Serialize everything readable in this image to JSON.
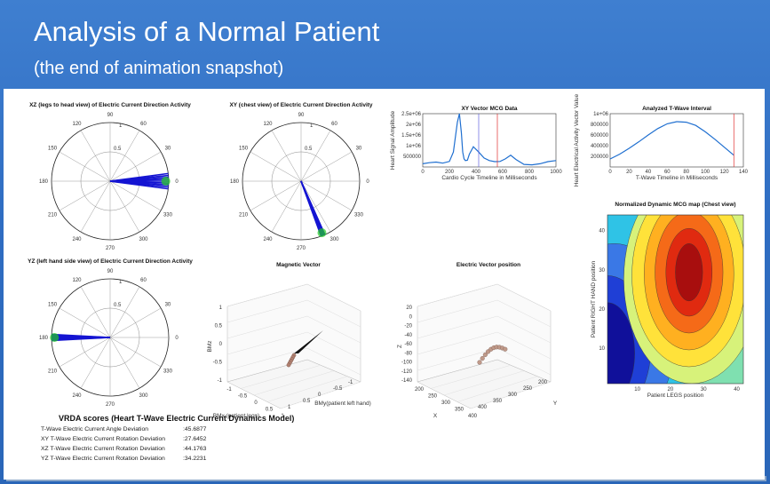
{
  "slide": {
    "title": "Analysis of a Normal Patient",
    "subtitle": "(the end of animation snapshot)"
  },
  "colors": {
    "background": "#2f6dc2",
    "polar_blue": "#1414d2",
    "polar_green": "#22cc22",
    "curve": "#1f6fd0",
    "marker_red": "#e03030",
    "marker_blue": "#6060e0"
  },
  "polar_charts": [
    {
      "title": "XZ (legs to head view) of Electric Current Direction Activity",
      "angle_labels": [
        "90",
        "60",
        "30",
        "0",
        "330",
        "300",
        "270",
        "240",
        "210",
        "180",
        "150",
        "120"
      ],
      "radius_labels": [
        "0.5",
        "1"
      ],
      "direction_deg": 0,
      "spread_deg": 15
    },
    {
      "title": "XY (chest view) of Electric Current Direction Activity",
      "angle_labels": [
        "90",
        "60",
        "30",
        "0",
        "330",
        "300",
        "270",
        "240",
        "210",
        "180",
        "150",
        "120"
      ],
      "radius_labels": [
        "0.5",
        "1"
      ],
      "direction_deg": 292,
      "spread_deg": 4
    },
    {
      "title": "YZ (left hand side view) of Electric Current Direction Activity",
      "angle_labels": [
        "90",
        "60",
        "30",
        "0",
        "330",
        "300",
        "270",
        "240",
        "210",
        "180",
        "150",
        "120"
      ],
      "radius_labels": [
        "0.5",
        "1"
      ],
      "direction_deg": 180,
      "spread_deg": 6
    }
  ],
  "chart_data": [
    {
      "type": "line",
      "title": "XY Vector MCG Data",
      "xlabel": "Cardio Cycle Timeline in Milliseconds",
      "ylabel": "Heart Signal Amplitude",
      "xlim": [
        0,
        1000
      ],
      "ylim": [
        0,
        2500000
      ],
      "xticks": [
        "0",
        "200",
        "400",
        "600",
        "800",
        "1000"
      ],
      "yticks": [
        "500000",
        "1e+06",
        "1.5e+06",
        "2e+06",
        "2.5e+06"
      ],
      "x": [
        0,
        50,
        100,
        150,
        200,
        230,
        260,
        275,
        290,
        300,
        310,
        320,
        335,
        350,
        380,
        420,
        460,
        500,
        540,
        580,
        620,
        660,
        700,
        760,
        820,
        880,
        940,
        1000
      ],
      "y": [
        150000,
        200000,
        230000,
        180000,
        260000,
        700000,
        2100000,
        2500000,
        1600000,
        700000,
        380000,
        300000,
        320000,
        600000,
        950000,
        700000,
        420000,
        300000,
        250000,
        260000,
        380000,
        550000,
        350000,
        120000,
        100000,
        150000,
        250000,
        300000
      ],
      "markers": [
        {
          "x": 420,
          "color": "#6060e0"
        },
        {
          "x": 560,
          "color": "#e03030"
        }
      ]
    },
    {
      "type": "line",
      "title": "Analyzed T-Wave Interval",
      "xlabel": "T-Wave Timeline in Milliseconds",
      "ylabel": "Heart Electrical Activity Vector Value",
      "xlim": [
        0,
        140
      ],
      "ylim": [
        0,
        1000000
      ],
      "xticks": [
        "0",
        "20",
        "40",
        "60",
        "80",
        "100",
        "120",
        "140"
      ],
      "yticks": [
        "200000",
        "400000",
        "600000",
        "800000",
        "1e+06"
      ],
      "x": [
        0,
        10,
        20,
        30,
        40,
        50,
        60,
        70,
        80,
        90,
        100,
        110,
        120,
        130
      ],
      "y": [
        150000,
        240000,
        350000,
        470000,
        600000,
        720000,
        810000,
        850000,
        840000,
        780000,
        660000,
        520000,
        370000,
        220000
      ],
      "markers": [
        {
          "x": 130,
          "color": "#e03030"
        }
      ]
    },
    {
      "type": "heatmap",
      "title": "Normalized Dynamic MCG map (Chest view)",
      "xlabel": "Patient LEGS position",
      "ylabel": "Patient RIGHT HAND position",
      "xlim": [
        1,
        42
      ],
      "ylim": [
        1,
        44
      ],
      "xticks": [
        "10",
        "20",
        "30",
        "40"
      ],
      "yticks": [
        "10",
        "20",
        "30",
        "40"
      ]
    }
  ],
  "panels_3d": [
    {
      "title": "Magnetic Vector",
      "zlabel": "BMz",
      "xlabel": "BMx (patient legs)",
      "ylabel": "BMy(patient left hand)",
      "zticks": [
        "1",
        "0.5",
        "0",
        "-0.5",
        "-1"
      ],
      "xticks": [
        "-1",
        "-0.5",
        "0",
        "0.5",
        "1"
      ],
      "yticks": [
        "1",
        "0.5",
        "0",
        "-0.5",
        "-1"
      ]
    },
    {
      "title": "Electric Vector position",
      "zlabel": "Z",
      "xlabel": "X",
      "ylabel": "Y",
      "zticks": [
        "20",
        "0",
        "-20",
        "-40",
        "-60",
        "-80",
        "-100",
        "-120",
        "-140"
      ],
      "xticks": [
        "200",
        "250",
        "300",
        "350",
        "400"
      ],
      "yticks": [
        "400",
        "350",
        "300",
        "250",
        "200"
      ]
    }
  ],
  "vrda": {
    "title": "VRDA scores (Heart T-Wave Electric Current Dynamics Model)",
    "rows": [
      {
        "label": "T-Wave Electric Current Angle Deviation",
        "value": ":45.6877"
      },
      {
        "label": "XY T-Wave Electric Current Rotation Deviation",
        "value": ":27.6452"
      },
      {
        "label": "XZ T-Wave Electric Current Rotation Deviation",
        "value": ":44.1763"
      },
      {
        "label": "YZ T-Wave Electric Current Rotation Deviation",
        "value": ":34.2231"
      }
    ]
  }
}
